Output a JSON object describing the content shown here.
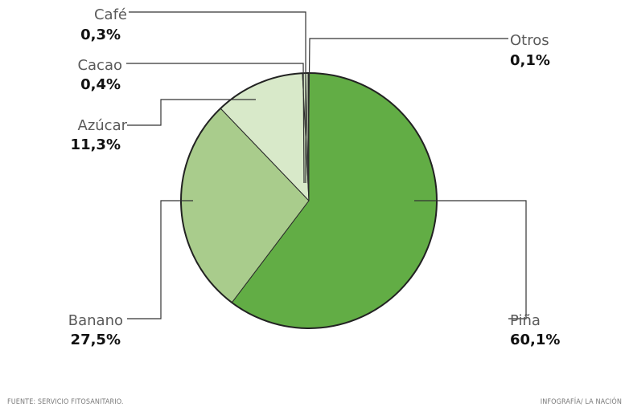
{
  "chart_data": {
    "type": "pie",
    "slices": [
      {
        "key": "pina",
        "label": "Piña",
        "value_text": "60,1%",
        "value": 60.1,
        "color": "#62ad45"
      },
      {
        "key": "banano",
        "label": "Banano",
        "value_text": "27,5%",
        "value": 27.5,
        "color": "#a9cc8c"
      },
      {
        "key": "azucar",
        "label": "Azúcar",
        "value_text": "11,3%",
        "value": 11.3,
        "color": "#d8e9c9"
      },
      {
        "key": "cacao",
        "label": "Cacao",
        "value_text": "0,4%",
        "value": 0.4,
        "color": "#d8e9c9"
      },
      {
        "key": "cafe",
        "label": "Café",
        "value_text": "0,3%",
        "value": 0.3,
        "color": "#d8e9c9"
      },
      {
        "key": "otros",
        "label": "Otros",
        "value_text": "0,1%",
        "value": 0.1,
        "color": "#d8e9c9"
      }
    ]
  },
  "footer": {
    "source": "FUENTE: SERVICIO FITOSANITARIO.",
    "credit": "INFOGRAFÍA/ LA NACIÓN"
  }
}
